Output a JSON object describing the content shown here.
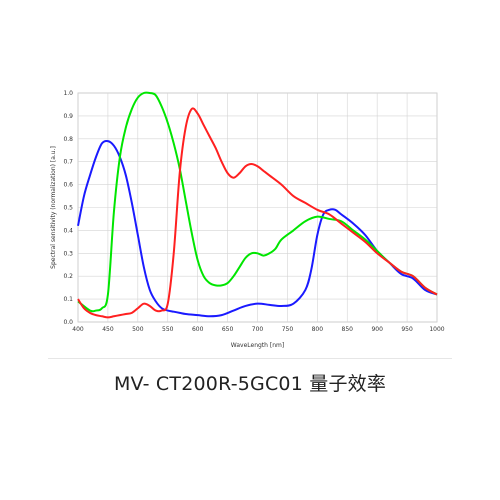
{
  "caption": "MV- CT200R-5GC01 量子效率",
  "chart_data": {
    "type": "line",
    "xlabel": "WaveLength [nm]",
    "ylabel": "Spectral sensitivity (normalization) [a.u.]",
    "xlim": [
      400,
      1000
    ],
    "ylim": [
      0,
      1.0
    ],
    "xticks": [
      400,
      450,
      500,
      550,
      600,
      650,
      700,
      750,
      800,
      850,
      900,
      950,
      1000
    ],
    "yticks": [
      0.0,
      0.1,
      0.2,
      0.3,
      0.4,
      0.5,
      0.6,
      0.7,
      0.8,
      0.9,
      1.0
    ],
    "grid": true,
    "series": [
      {
        "color": "#1a1aff",
        "x": [
          400,
          410,
          420,
          430,
          440,
          450,
          460,
          470,
          480,
          490,
          500,
          510,
          520,
          530,
          540,
          550,
          560,
          570,
          580,
          600,
          620,
          640,
          660,
          680,
          700,
          720,
          740,
          760,
          780,
          790,
          800,
          810,
          820,
          830,
          840,
          860,
          880,
          900,
          920,
          940,
          960,
          980,
          1000
        ],
        "y": [
          0.42,
          0.55,
          0.64,
          0.72,
          0.78,
          0.79,
          0.77,
          0.72,
          0.64,
          0.52,
          0.38,
          0.24,
          0.14,
          0.09,
          0.06,
          0.05,
          0.045,
          0.04,
          0.035,
          0.03,
          0.025,
          0.03,
          0.05,
          0.07,
          0.08,
          0.075,
          0.07,
          0.08,
          0.14,
          0.23,
          0.38,
          0.47,
          0.49,
          0.49,
          0.47,
          0.43,
          0.38,
          0.31,
          0.26,
          0.21,
          0.19,
          0.14,
          0.12
        ]
      },
      {
        "color": "#00e600",
        "x": [
          400,
          420,
          430,
          440,
          450,
          460,
          470,
          480,
          490,
          500,
          510,
          520,
          530,
          540,
          550,
          560,
          570,
          580,
          590,
          600,
          610,
          620,
          630,
          640,
          650,
          660,
          670,
          680,
          690,
          700,
          710,
          720,
          730,
          740,
          760,
          780,
          800,
          820,
          840,
          860,
          880,
          900,
          920,
          940,
          960,
          980,
          1000
        ],
        "y": [
          0.09,
          0.05,
          0.05,
          0.06,
          0.12,
          0.48,
          0.72,
          0.85,
          0.93,
          0.98,
          1.0,
          1.0,
          0.99,
          0.94,
          0.87,
          0.78,
          0.67,
          0.53,
          0.39,
          0.27,
          0.2,
          0.17,
          0.16,
          0.16,
          0.17,
          0.2,
          0.24,
          0.28,
          0.3,
          0.3,
          0.29,
          0.3,
          0.32,
          0.36,
          0.4,
          0.44,
          0.46,
          0.45,
          0.44,
          0.4,
          0.36,
          0.31,
          0.26,
          0.22,
          0.2,
          0.15,
          0.12
        ]
      },
      {
        "color": "#ff2020",
        "x": [
          400,
          410,
          420,
          430,
          440,
          450,
          460,
          470,
          480,
          490,
          500,
          510,
          520,
          530,
          540,
          550,
          560,
          570,
          580,
          590,
          600,
          610,
          620,
          630,
          640,
          650,
          660,
          670,
          680,
          690,
          700,
          710,
          720,
          740,
          760,
          780,
          800,
          820,
          840,
          860,
          880,
          900,
          920,
          940,
          960,
          980,
          1000
        ],
        "y": [
          0.1,
          0.06,
          0.04,
          0.03,
          0.025,
          0.02,
          0.025,
          0.03,
          0.035,
          0.04,
          0.06,
          0.08,
          0.07,
          0.05,
          0.05,
          0.08,
          0.3,
          0.65,
          0.85,
          0.93,
          0.91,
          0.86,
          0.81,
          0.76,
          0.7,
          0.65,
          0.63,
          0.65,
          0.68,
          0.69,
          0.68,
          0.66,
          0.64,
          0.6,
          0.55,
          0.52,
          0.49,
          0.47,
          0.43,
          0.39,
          0.35,
          0.3,
          0.26,
          0.22,
          0.2,
          0.15,
          0.12
        ]
      }
    ]
  }
}
